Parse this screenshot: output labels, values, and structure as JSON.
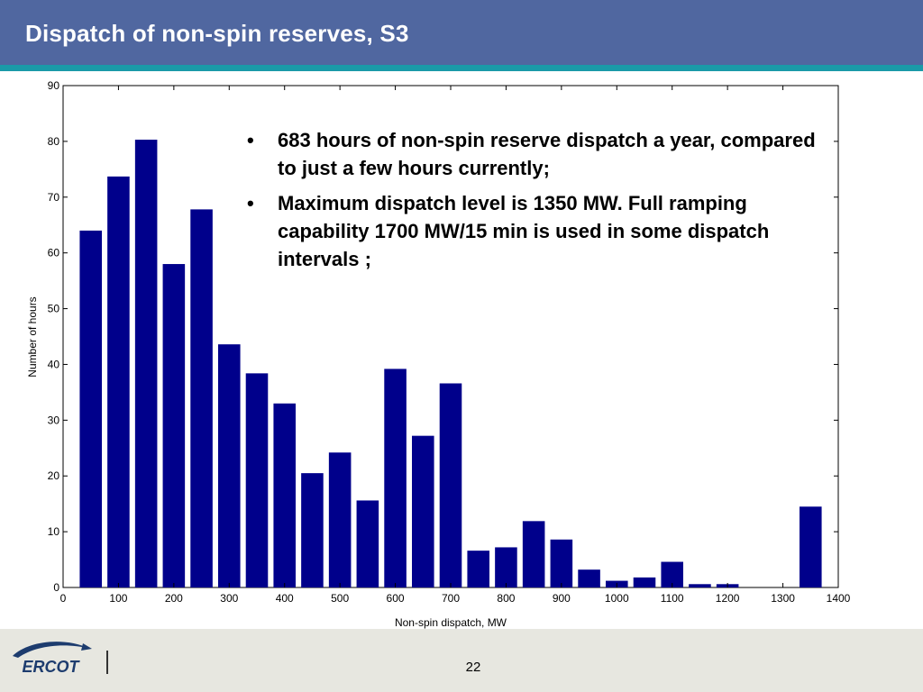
{
  "slide": {
    "title": "Dispatch of non-spin reserves, S3",
    "bullets": [
      "683 hours of non-spin reserve dispatch a year, compared to just a few hours currently;",
      "Maximum dispatch level is 1350 MW. Full ramping capability 1700 MW/15 min is used in some dispatch intervals ;"
    ],
    "bullet_glyph": "•",
    "page_number": "22",
    "logo_text": "ERCOT"
  },
  "colors": {
    "header": "#5067a0",
    "header_stripe": "#1a9aa8",
    "bar": "#00008b",
    "footer": "#e7e7e0",
    "logo": "#1d3c6e"
  },
  "chart_data": {
    "type": "bar",
    "title": "",
    "xlabel": "Non-spin dispatch, MW",
    "ylabel": "Number of hours",
    "xlim": [
      0,
      1400
    ],
    "ylim": [
      0,
      90
    ],
    "xticks": [
      0,
      100,
      200,
      300,
      400,
      500,
      600,
      700,
      800,
      900,
      1000,
      1100,
      1200,
      1300,
      1400
    ],
    "yticks": [
      0,
      10,
      20,
      30,
      40,
      50,
      60,
      70,
      80,
      90
    ],
    "bin_width": 50,
    "bin_centers": [
      50,
      100,
      150,
      200,
      250,
      300,
      350,
      400,
      450,
      500,
      550,
      600,
      650,
      700,
      750,
      800,
      850,
      900,
      950,
      1000,
      1050,
      1100,
      1150,
      1200,
      1250,
      1300,
      1350
    ],
    "values": [
      64,
      73.7,
      80.3,
      58,
      67.8,
      43.6,
      38.4,
      33,
      20.5,
      24.2,
      15.6,
      39.2,
      27.2,
      36.6,
      6.6,
      7.2,
      11.9,
      8.6,
      3.2,
      1.2,
      1.8,
      4.6,
      0.6,
      0.6,
      0,
      0,
      14.5
    ],
    "grid": false
  }
}
